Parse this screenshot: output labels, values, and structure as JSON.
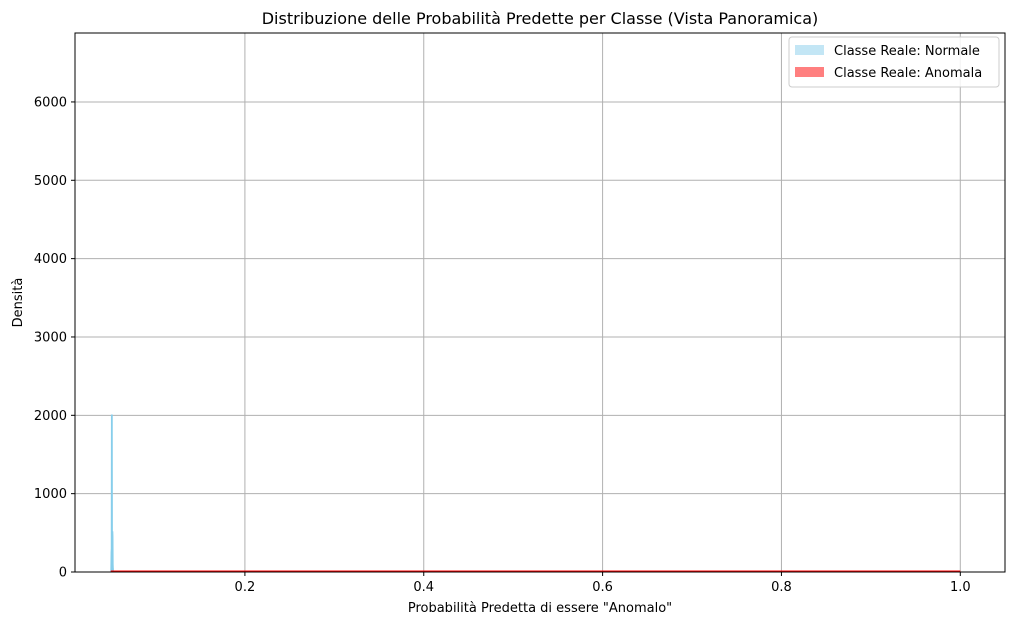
{
  "chart_data": {
    "type": "area",
    "title": "Distribuzione delle Probabilità Predette per Classe (Vista Panoramica)",
    "xlabel": "Probabilità Predetta di essere \"Anomalo\"",
    "ylabel": "Densità",
    "xlim": [
      0.01,
      1.05
    ],
    "ylim": [
      0,
      6880
    ],
    "xticks": [
      0.2,
      0.4,
      0.6,
      0.8,
      1.0
    ],
    "xtick_labels": [
      "0.2",
      "0.4",
      "0.6",
      "0.8",
      "1.0"
    ],
    "yticks": [
      0,
      1000,
      2000,
      3000,
      4000,
      5000,
      6000
    ],
    "ytick_labels": [
      "0",
      "1000",
      "2000",
      "3000",
      "4000",
      "5000",
      "6000"
    ],
    "grid": true,
    "legend_position": "top-right",
    "series": [
      {
        "name": "Classe Reale: Normale",
        "color": "#87ceeb",
        "x": [
          0.0505,
          0.0508,
          0.051,
          0.0512,
          0.0514,
          0.0516,
          0.0518,
          0.052,
          0.0522,
          0.0524,
          0.0526,
          0.0528
        ],
        "y": [
          0,
          250,
          300,
          2010,
          250,
          150,
          520,
          450,
          100,
          40,
          10,
          0
        ]
      },
      {
        "name": "Classe Reale: Anomala",
        "color": "#ff0000",
        "x": [
          0.05,
          0.2,
          0.4,
          0.6,
          0.8,
          1.0
        ],
        "y": [
          10,
          10,
          10,
          10,
          10,
          10
        ]
      }
    ]
  }
}
